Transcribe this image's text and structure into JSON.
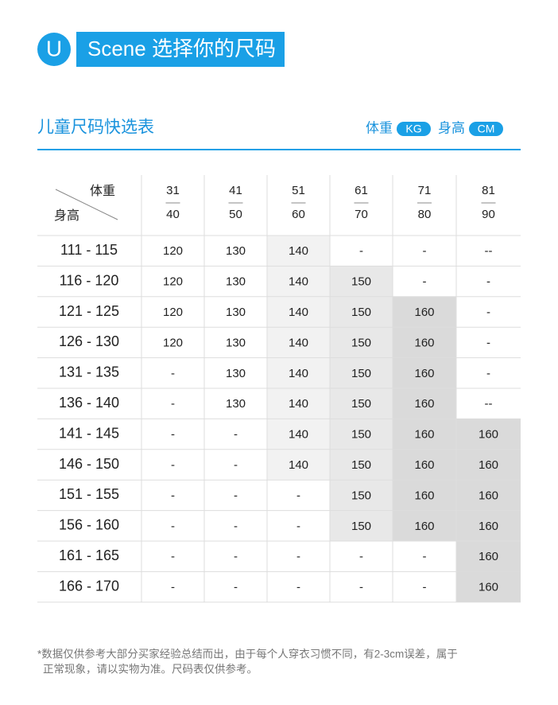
{
  "header": {
    "badge": "U",
    "title": "Scene 选择你的尺码"
  },
  "section": {
    "title": "儿童尺码快选表",
    "units": [
      {
        "label": "体重",
        "unit": "KG"
      },
      {
        "label": "身高",
        "unit": "CM"
      }
    ]
  },
  "table": {
    "corner": {
      "top": "体重",
      "bottom": "身高"
    },
    "columns": [
      {
        "weight": 31,
        "height": 40
      },
      {
        "weight": 41,
        "height": 50
      },
      {
        "weight": 51,
        "height": 60
      },
      {
        "weight": 61,
        "height": 70
      },
      {
        "weight": 71,
        "height": 80
      },
      {
        "weight": 81,
        "height": 90
      }
    ],
    "rows": [
      {
        "label": "111 - 115",
        "cells": [
          120,
          130,
          140,
          "-",
          "-",
          "--"
        ]
      },
      {
        "label": "116 - 120",
        "cells": [
          120,
          130,
          140,
          150,
          "-",
          "-"
        ]
      },
      {
        "label": "121 - 125",
        "cells": [
          120,
          130,
          140,
          150,
          160,
          "-"
        ]
      },
      {
        "label": "126 - 130",
        "cells": [
          120,
          130,
          140,
          150,
          160,
          "-"
        ]
      },
      {
        "label": "131 - 135",
        "cells": [
          "-",
          130,
          140,
          150,
          160,
          "-"
        ]
      },
      {
        "label": "136 - 140",
        "cells": [
          "-",
          130,
          140,
          150,
          160,
          "--"
        ]
      },
      {
        "label": "141 - 145",
        "cells": [
          "-",
          "-",
          140,
          150,
          160,
          160
        ]
      },
      {
        "label": "146 - 150",
        "cells": [
          "-",
          "-",
          140,
          150,
          160,
          160
        ]
      },
      {
        "label": "151 - 155",
        "cells": [
          "-",
          "-",
          "-",
          150,
          160,
          160
        ]
      },
      {
        "label": "156 - 160",
        "cells": [
          "-",
          "-",
          "-",
          150,
          160,
          160
        ]
      },
      {
        "label": "161 - 165",
        "cells": [
          "-",
          "-",
          "-",
          "-",
          "-",
          160
        ]
      },
      {
        "label": "166 - 170",
        "cells": [
          "-",
          "-",
          "-",
          "-",
          "-",
          160
        ]
      }
    ]
  },
  "footnote": [
    "*数据仅供参考大部分买家经验总结而出，由于每个人穿衣习惯不同，有2-3cm误差，属于",
    "正常现象，请以实物为准。尺码表仅供参考。"
  ]
}
